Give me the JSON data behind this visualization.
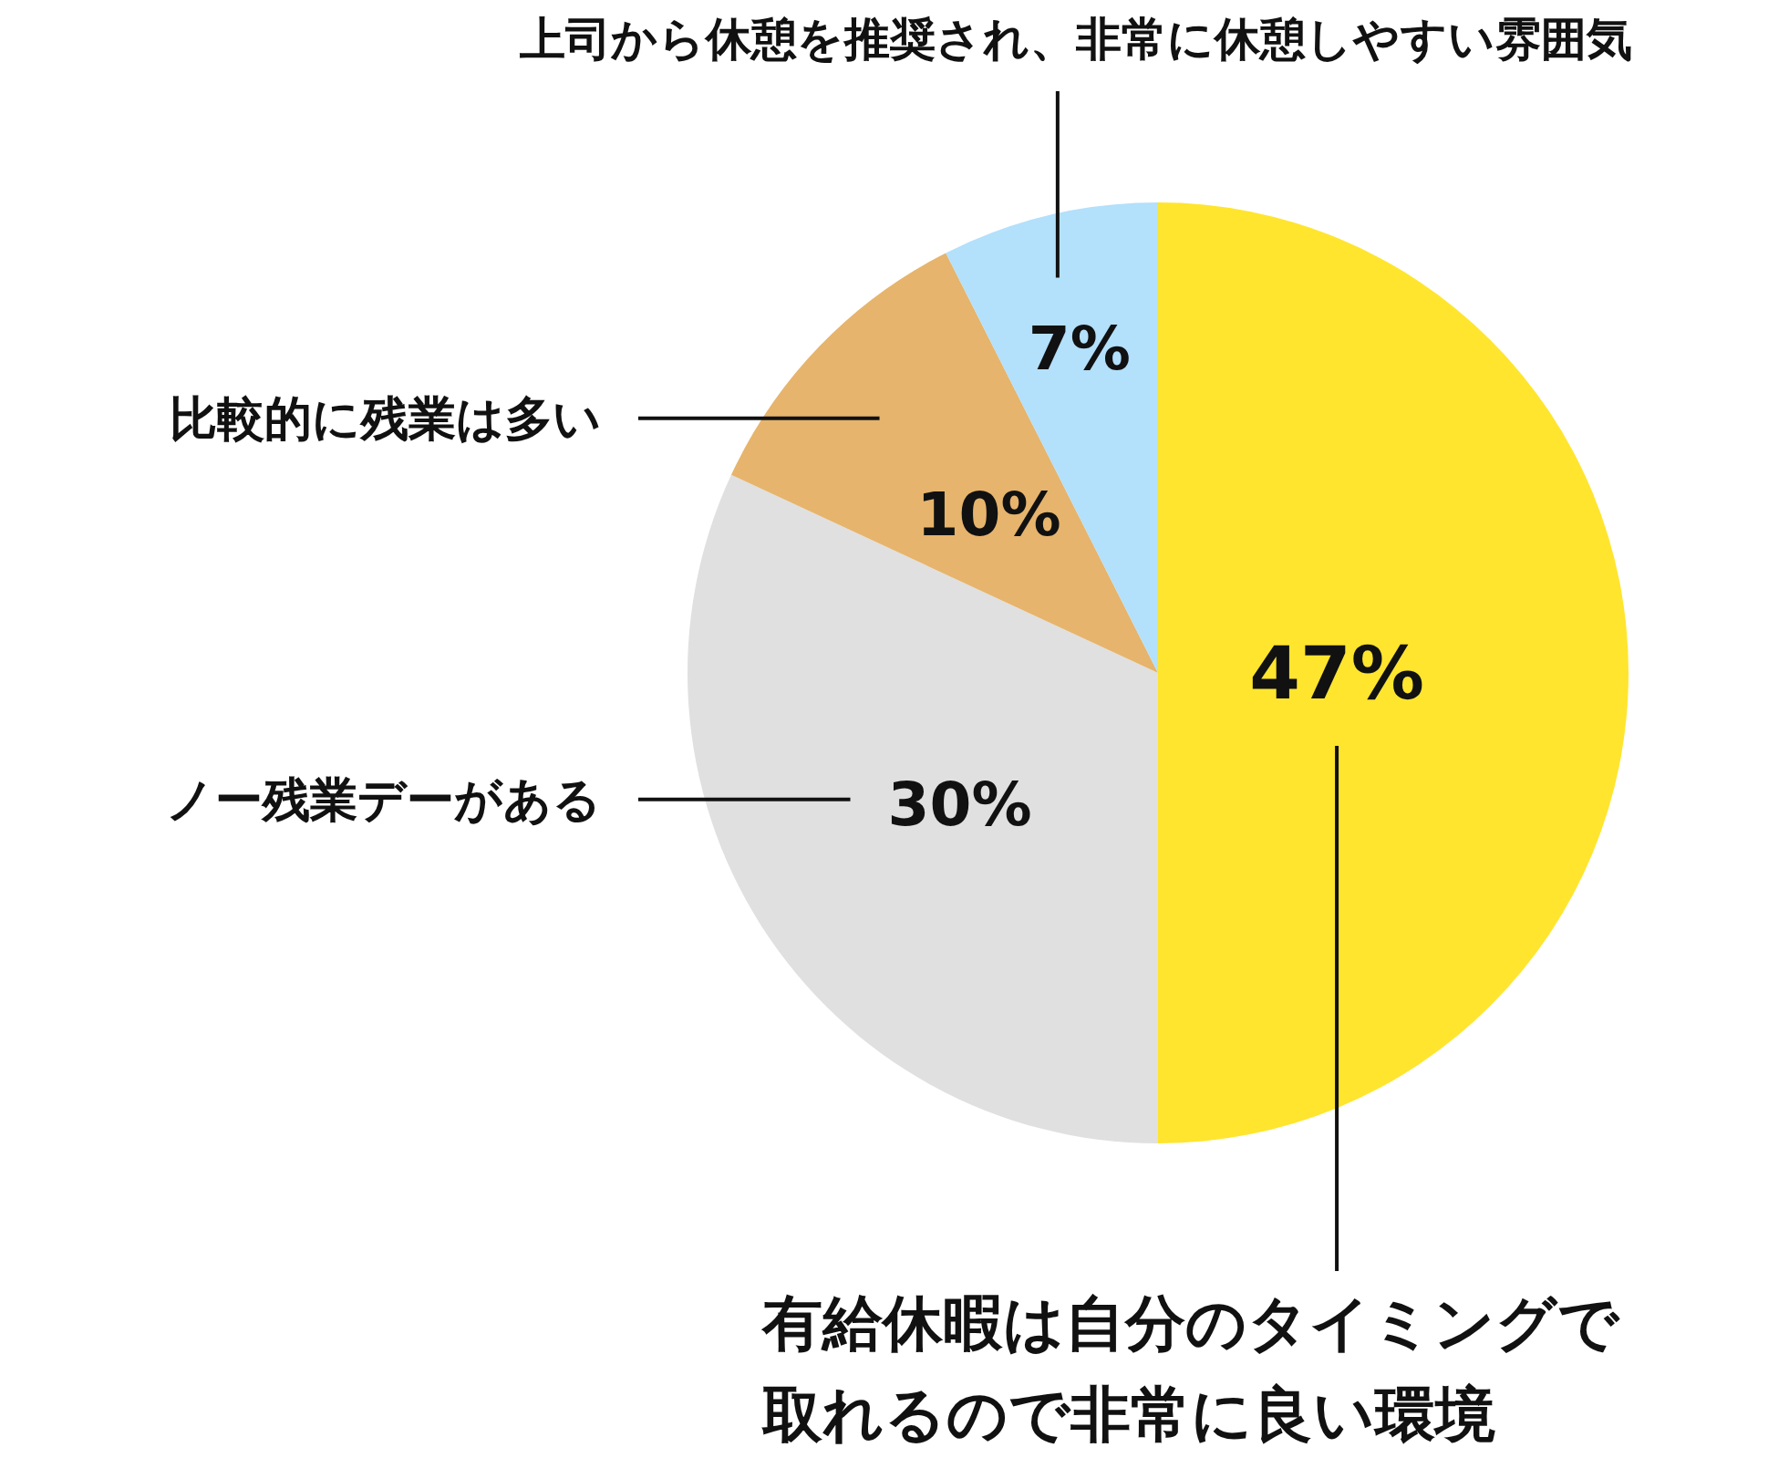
{
  "chart_data": {
    "type": "pie",
    "categories": [
      "有給休暇は自分のタイミングで取れるので非常に良い環境",
      "ノー残業デーがある",
      "比較的に残業は多い",
      "上司から休憩を推奨され、非常に休憩しやすい雰囲気"
    ],
    "values": [
      47,
      30,
      10,
      7
    ],
    "value_labels": [
      "47%",
      "30%",
      "10%",
      "7%"
    ],
    "colors": [
      "#ffe52e",
      "#e0e0e0",
      "#e6b46c",
      "#b3e0fb"
    ]
  }
}
